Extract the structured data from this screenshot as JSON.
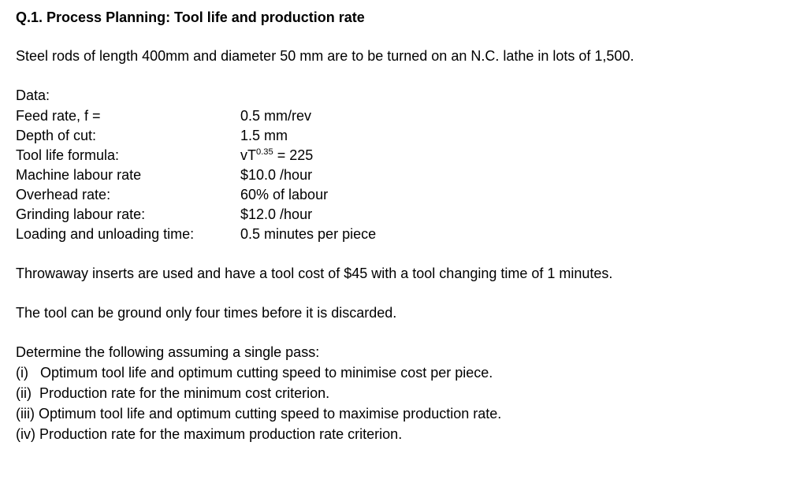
{
  "title": "Q.1. Process Planning: Tool life and production rate",
  "intro": "Steel rods of length 400mm and diameter 50 mm are to be turned on an N.C. lathe in lots of 1,500.",
  "data_section": {
    "heading": "Data:",
    "rows": [
      {
        "label": "Feed rate, f =",
        "value": "0.5 mm/rev"
      },
      {
        "label": "Depth of cut:",
        "value": "1.5 mm"
      },
      {
        "label": "Tool life formula:",
        "value_prefix": "vT",
        "value_sup": "0.35",
        "value_suffix": " = 225"
      },
      {
        "label": "Machine labour rate",
        "value": "$10.0 /hour"
      },
      {
        "label": "Overhead rate:",
        "value": "60% of labour"
      },
      {
        "label": "Grinding labour rate:",
        "value": "$12.0 /hour"
      },
      {
        "label": "Loading and unloading time:",
        "value": "0.5 minutes per piece"
      }
    ]
  },
  "paragraphs": {
    "inserts": "Throwaway inserts are used and have a tool cost of $45 with a tool changing time of 1 minutes.",
    "grinding": "The tool can be ground only four times before it is discarded."
  },
  "determine": {
    "heading": "Determine the following assuming a single pass:",
    "items": [
      "(i)   Optimum tool life and optimum cutting speed to minimise cost per piece.",
      "(ii)  Production rate for the minimum cost criterion.",
      "(iii) Optimum tool life and optimum cutting speed to maximise production rate.",
      "(iv) Production rate for the maximum production rate criterion."
    ]
  }
}
